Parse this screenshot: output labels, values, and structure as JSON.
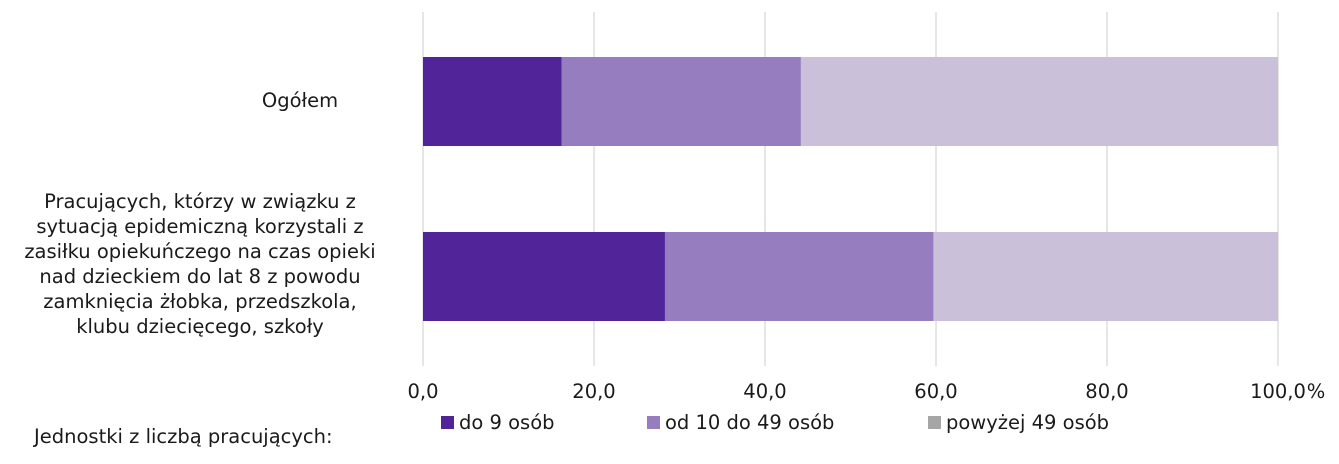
{
  "chart_data": {
    "type": "bar",
    "orientation": "horizontal",
    "stacked": true,
    "categories": [
      "Ogółem",
      "Pracujących, którzy w związku z\nsytuacją epidemiczną korzystali z\nzasiłku opiekuńczego na czas opieki\nnad dzieckiem do lat 8 z powodu\nzamknięcia żłobka, przedszkola,\nklubu dziecięcego, szkoły"
    ],
    "series": [
      {
        "name": "do 9 osób",
        "values": [
          16.2,
          28.3
        ],
        "color": "#52249a"
      },
      {
        "name": "od 10 do 49 osób",
        "values": [
          28.0,
          31.4
        ],
        "color": "#967dc0"
      },
      {
        "name": "powyżej 49 osób",
        "values": [
          55.8,
          40.3
        ],
        "color": "#cac0da"
      }
    ],
    "x_ticks": [
      "0,0",
      "20,0",
      "40,0",
      "60,0",
      "80,0",
      "100,0"
    ],
    "x_unit": "%",
    "xlim": [
      0,
      100
    ],
    "grid": true,
    "legend_position": "bottom",
    "legend_title": "Jednostki z liczbą pracujących:",
    "legend_swatch_colors": [
      "#52249a",
      "#967dc0",
      "#a6a6a6"
    ]
  }
}
